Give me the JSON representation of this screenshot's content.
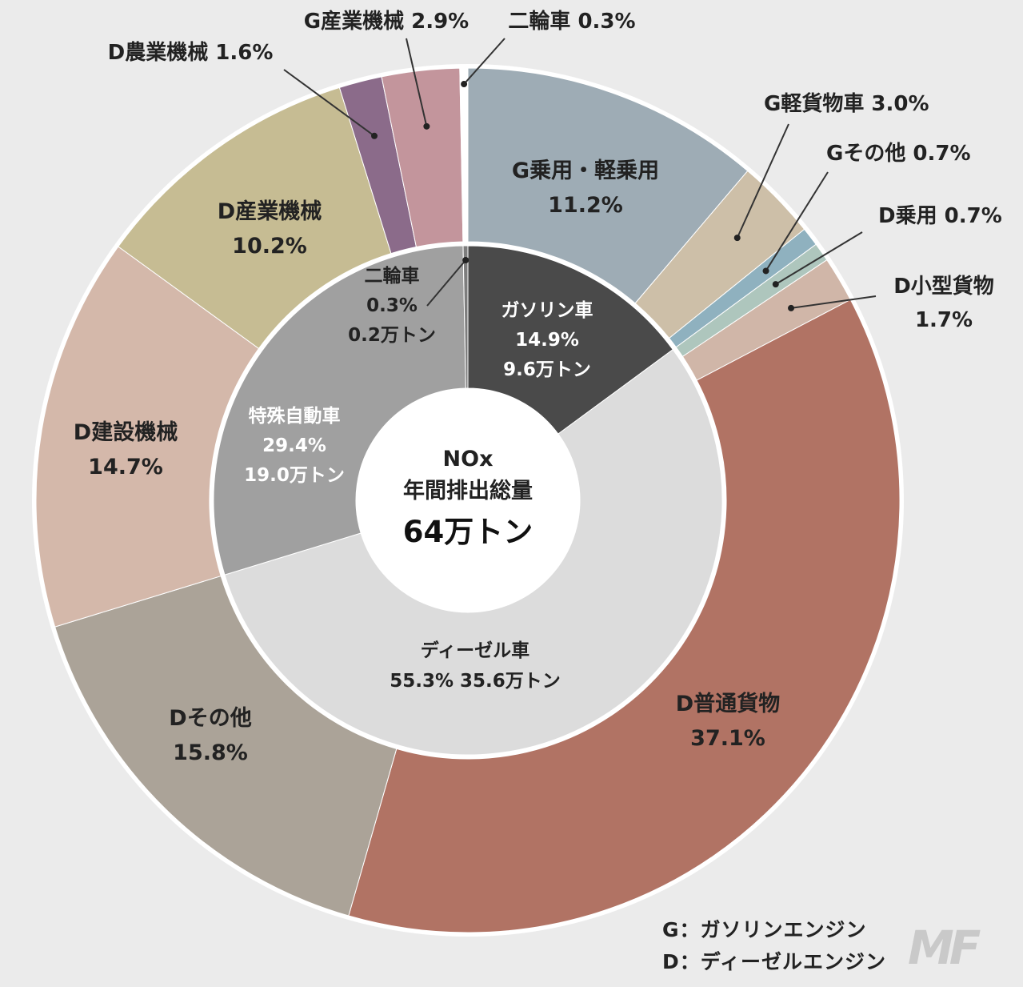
{
  "chart_data": {
    "type": "pie",
    "center": {
      "line1": "NOx",
      "line2": "年間排出総量",
      "line3": "64万トン"
    },
    "inner": [
      {
        "name": "ガソリン車",
        "pct": 14.9,
        "tons": "9.6万トン",
        "pct_label": "14.9%",
        "color": "#4a4a4a",
        "text_color": "#ffffff"
      },
      {
        "name": "ディーゼル車",
        "pct": 55.3,
        "tons": "35.6万トン",
        "pct_label": "55.3%",
        "color": "#dcdcdc",
        "text_color": "#222222"
      },
      {
        "name": "特殊自動車",
        "pct": 29.4,
        "tons": "19.0万トン",
        "pct_label": "29.4%",
        "color": "#a0a0a0",
        "text_color": "#ffffff"
      },
      {
        "name": "二輪車",
        "pct": 0.3,
        "tons": "0.2万トン",
        "pct_label": "0.3%",
        "color": "#7d7d7d",
        "text_color": "#222222"
      }
    ],
    "outer": [
      {
        "name": "G乗用・軽乗用",
        "pct": 11.2,
        "pct_label": "11.2%",
        "color": "#9eacb5"
      },
      {
        "name": "G軽貨物車",
        "pct": 3.0,
        "pct_label": "3.0%",
        "color": "#cdbfa8"
      },
      {
        "name": "Gその他",
        "pct": 0.7,
        "pct_label": "0.7%",
        "color": "#8fb1bf"
      },
      {
        "name": "D乗用",
        "pct": 0.7,
        "pct_label": "0.7%",
        "color": "#aec6bd"
      },
      {
        "name": "D小型貨物",
        "pct": 1.7,
        "pct_label": "1.7%",
        "color": "#d0b6a8"
      },
      {
        "name": "D普通貨物",
        "pct": 37.1,
        "pct_label": "37.1%",
        "color": "#b17364"
      },
      {
        "name": "Dその他",
        "pct": 15.8,
        "pct_label": "15.8%",
        "color": "#aba398"
      },
      {
        "name": "D建設機械",
        "pct": 14.7,
        "pct_label": "14.7%",
        "color": "#d4b8aa"
      },
      {
        "name": "D産業機械",
        "pct": 10.2,
        "pct_label": "10.2%",
        "color": "#c6bc93"
      },
      {
        "name": "D農業機械",
        "pct": 1.6,
        "pct_label": "1.6%",
        "color": "#8b6b8a"
      },
      {
        "name": "G産業機械",
        "pct": 2.9,
        "pct_label": "2.9%",
        "color": "#c3959c"
      },
      {
        "name": "二輪車",
        "pct": 0.3,
        "pct_label": "0.3%",
        "color": "#ffffff"
      }
    ]
  },
  "legend": {
    "g": "G：ガソリンエンジン",
    "d": "D：ディーゼルエンジン"
  },
  "logo_text": "MF"
}
